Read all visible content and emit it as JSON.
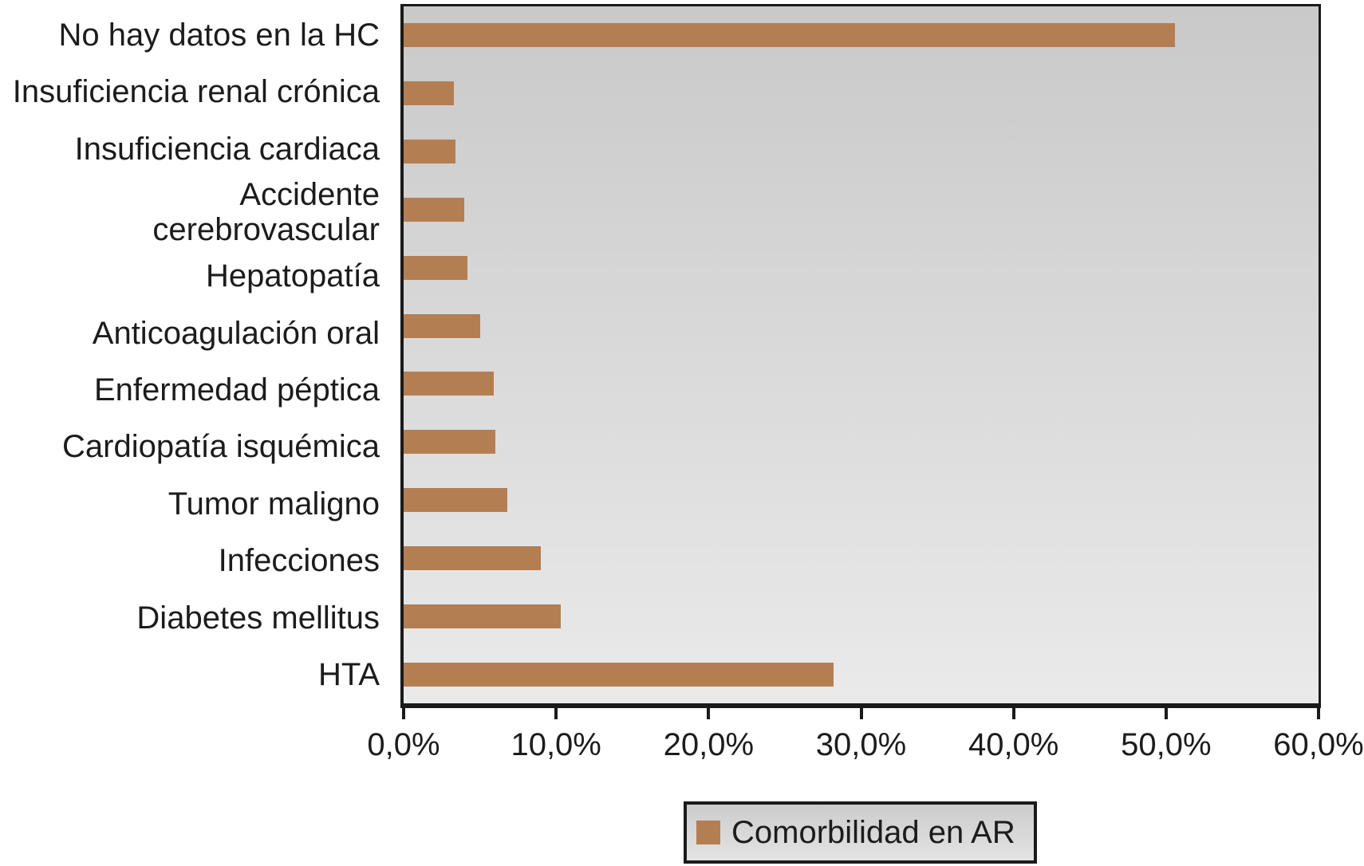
{
  "chart_data": {
    "type": "bar",
    "orientation": "horizontal",
    "series_name": "Comorbilidad en AR",
    "categories": [
      "No hay datos en la HC",
      "Insuficiencia renal crónica",
      "Insuficiencia cardiaca",
      "Accidente cerebrovascular",
      "Hepatopatía",
      "Anticoagulación oral",
      "Enfermedad péptica",
      "Cardiopatía isquémica",
      "Tumor maligno",
      "Infecciones",
      "Diabetes mellitus",
      "HTA"
    ],
    "values": [
      50.6,
      3.3,
      3.4,
      4.0,
      4.2,
      5.0,
      5.9,
      6.0,
      6.8,
      9.0,
      10.3,
      28.2
    ],
    "unit": "%",
    "xlim": [
      0,
      60
    ],
    "x_tick_step": 10,
    "x_tick_labels": [
      "0,0%",
      "10,0%",
      "20,0%",
      "30,0%",
      "40,0%",
      "50,0%",
      "60,0%"
    ],
    "grid": false,
    "legend": {
      "label": "Comorbilidad en AR",
      "position": "bottom-center"
    },
    "layout_hints": {
      "two_line_categories": [
        "Accidente cerebrovascular"
      ]
    },
    "colors": {
      "bar": "#b47e53",
      "plot_bg_top": "#c9c9c9",
      "plot_bg_bottom": "#eaeaea",
      "axis": "#1a1a1a",
      "text": "#1c1c1c",
      "page_bg": "#ffffff"
    }
  }
}
